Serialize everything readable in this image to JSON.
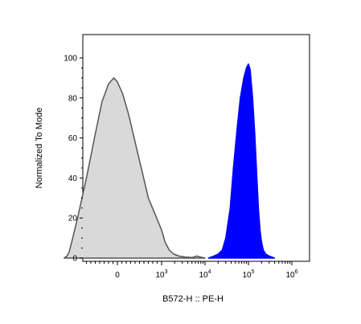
{
  "chart_data": {
    "type": "area",
    "xlabel": "B572-H :: PE-H",
    "ylabel": "Normalized To Mode",
    "x_scale": "biexponential",
    "ylim": [
      0,
      100
    ],
    "y_ticks": [
      "0",
      "20",
      "40",
      "60",
      "80",
      "100"
    ],
    "x_ticks": [
      {
        "base": "0",
        "exp": ""
      },
      {
        "base": "10",
        "exp": "3"
      },
      {
        "base": "10",
        "exp": "4"
      },
      {
        "base": "10",
        "exp": "5"
      },
      {
        "base": "10",
        "exp": "6"
      }
    ],
    "grid": false,
    "series": [
      {
        "fill": "#d9d9d9",
        "stroke": "#555555",
        "points": [
          [
            -1800,
            0
          ],
          [
            -1500,
            1
          ],
          [
            -1300,
            3
          ],
          [
            -1100,
            8
          ],
          [
            -900,
            20
          ],
          [
            -700,
            40
          ],
          [
            -500,
            62
          ],
          [
            -350,
            78
          ],
          [
            -200,
            87
          ],
          [
            -80,
            90
          ],
          [
            0,
            88
          ],
          [
            120,
            82
          ],
          [
            250,
            72
          ],
          [
            400,
            58
          ],
          [
            550,
            44
          ],
          [
            700,
            30
          ],
          [
            850,
            22
          ],
          [
            1000,
            14
          ],
          [
            1200,
            8
          ],
          [
            1500,
            4
          ],
          [
            1900,
            2
          ],
          [
            2500,
            1
          ],
          [
            3500,
            0.5
          ],
          [
            5000,
            0.3
          ],
          [
            6500,
            1
          ],
          [
            8000,
            0.5
          ],
          [
            10000,
            0
          ]
        ]
      },
      {
        "fill": "#0000ff",
        "stroke": "#0000ff",
        "points": [
          [
            12000,
            0
          ],
          [
            16000,
            1
          ],
          [
            20000,
            2
          ],
          [
            25000,
            4
          ],
          [
            30000,
            10
          ],
          [
            38000,
            25
          ],
          [
            45000,
            45
          ],
          [
            55000,
            65
          ],
          [
            65000,
            80
          ],
          [
            78000,
            90
          ],
          [
            90000,
            95
          ],
          [
            100000,
            97
          ],
          [
            110000,
            94
          ],
          [
            125000,
            80
          ],
          [
            140000,
            62
          ],
          [
            155000,
            42
          ],
          [
            170000,
            25
          ],
          [
            185000,
            14
          ],
          [
            200000,
            8
          ],
          [
            220000,
            4
          ],
          [
            250000,
            2
          ],
          [
            300000,
            1
          ],
          [
            400000,
            0
          ]
        ]
      }
    ]
  }
}
